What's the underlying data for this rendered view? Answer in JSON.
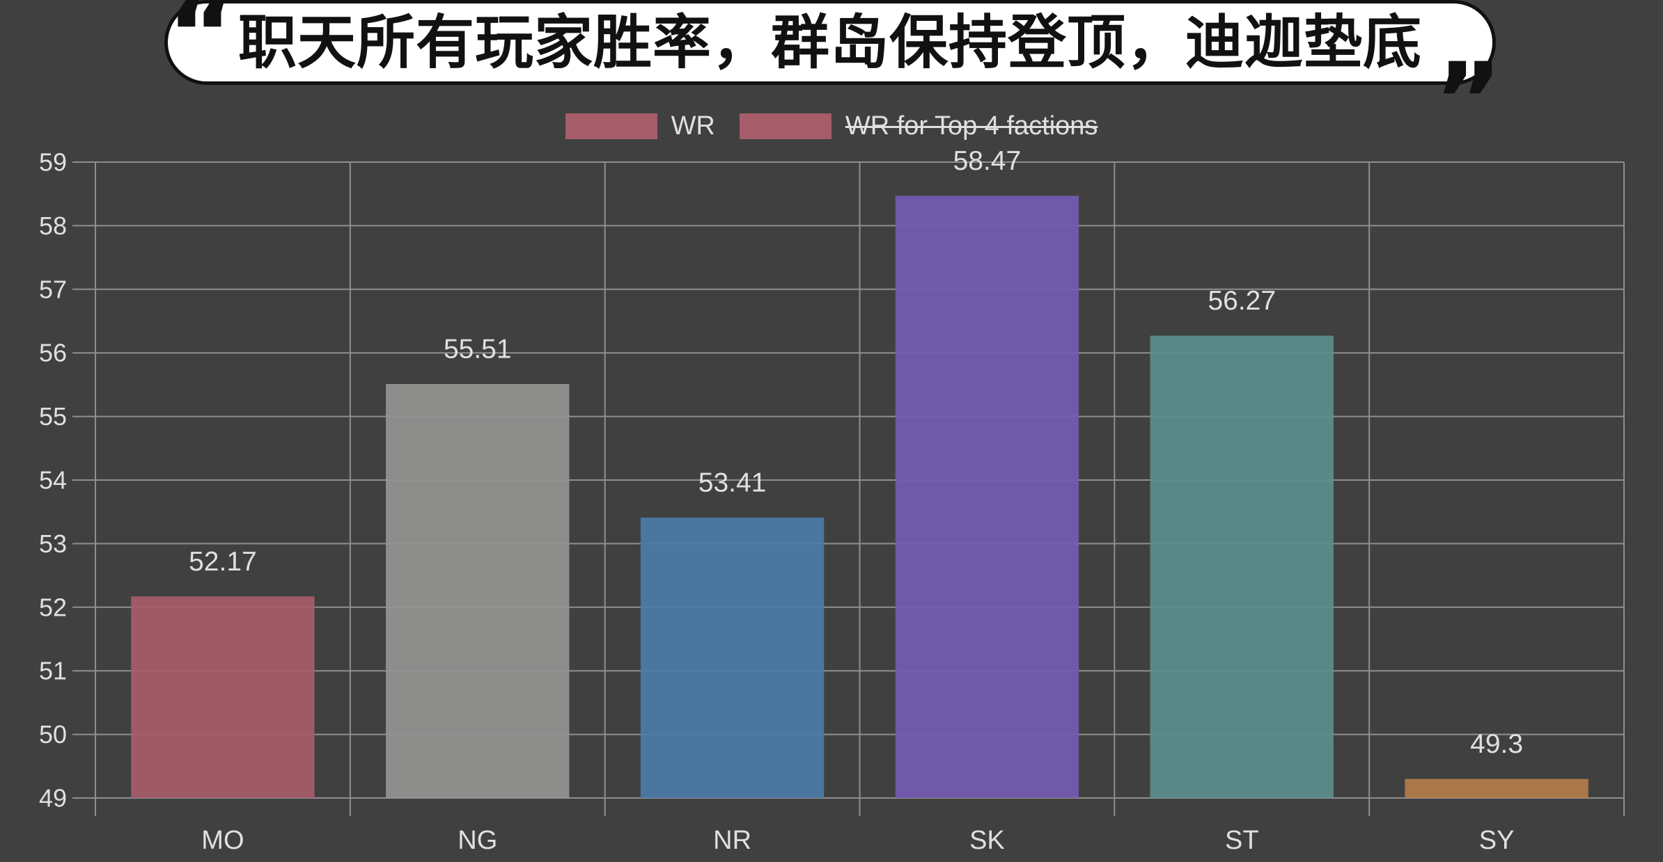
{
  "theme": {
    "background": "#404040",
    "grid": "#8f8f8f",
    "text": "#e0e0e0"
  },
  "header": {
    "open_quote": "“",
    "close_quote": "”"
  },
  "chart_data": {
    "type": "bar",
    "title": "职天所有玩家胜率，群岛保持登顶，迪迦垫底",
    "categories": [
      "MO",
      "NG",
      "NR",
      "SK",
      "ST",
      "SY"
    ],
    "series": [
      {
        "name": "WR",
        "values": [
          52.17,
          55.51,
          53.41,
          58.47,
          56.27,
          49.3
        ],
        "colors": [
          "#a75c6a",
          "#949492",
          "#4b7ba8",
          "#735bb2",
          "#5b8e8c",
          "#b27c4a"
        ]
      },
      {
        "name": "WR for Top 4 factions",
        "color": "#a75c6a",
        "hidden": true
      }
    ],
    "ylim": [
      49,
      59
    ],
    "yticks": [
      49,
      50,
      51,
      52,
      53,
      54,
      55,
      56,
      57,
      58,
      59
    ],
    "grid": true,
    "legend_position": "top"
  }
}
